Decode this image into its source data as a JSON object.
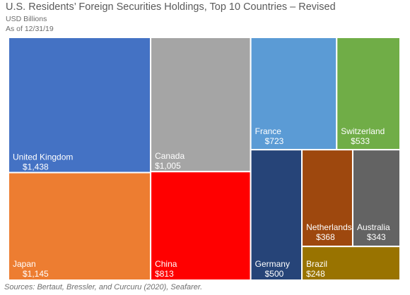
{
  "header": {
    "title": "U.S. Residents’ Foreign Securities Holdings, Top 10 Countries – Revised",
    "subtitle_units": "USD Billions",
    "subtitle_date": "As of 12/31/19"
  },
  "footer": {
    "source": "Sources: Bertaut, Bressler, and Curcuru (2020), Seafarer."
  },
  "chart_data": {
    "type": "treemap",
    "title": "U.S. Residents’ Foreign Securities Holdings, Top 10 Countries – Revised",
    "units": "USD Billions",
    "as_of": "As of 12/31/19",
    "items": [
      {
        "name": "United Kingdom",
        "value": 1438,
        "label": "$1,438",
        "color": "#4472c4"
      },
      {
        "name": "Japan",
        "value": 1145,
        "label": "$1,145",
        "color": "#ed7d31"
      },
      {
        "name": "Canada",
        "value": 1005,
        "label": "$1,005",
        "color": "#a5a5a5"
      },
      {
        "name": "China",
        "value": 813,
        "label": "$813",
        "color": "#ff0000"
      },
      {
        "name": "France",
        "value": 723,
        "label": "$723",
        "color": "#5b9bd5"
      },
      {
        "name": "Switzerland",
        "value": 533,
        "label": "$533",
        "color": "#70ad47"
      },
      {
        "name": "Germany",
        "value": 500,
        "label": "$500",
        "color": "#264478"
      },
      {
        "name": "Netherlands",
        "value": 368,
        "label": "$368",
        "color": "#9e480e"
      },
      {
        "name": "Australia",
        "value": 343,
        "label": "$343",
        "color": "#636363"
      },
      {
        "name": "Brazil",
        "value": 248,
        "label": "$248",
        "color": "#997300"
      }
    ]
  }
}
